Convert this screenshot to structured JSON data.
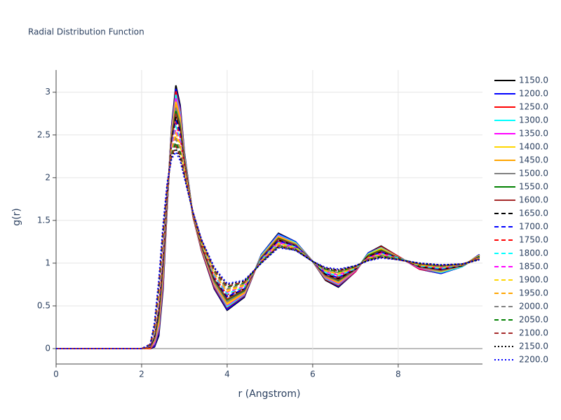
{
  "chart_data": {
    "type": "line",
    "title": "Radial Distribution Function",
    "x_label": "r (Angstrom)",
    "y_label": "g(r)",
    "x": [
      0,
      2.0,
      2.2,
      2.3,
      2.4,
      2.5,
      2.6,
      2.7,
      2.8,
      2.9,
      3.0,
      3.2,
      3.4,
      3.7,
      4.0,
      4.4,
      4.8,
      5.2,
      5.6,
      6.0,
      6.3,
      6.6,
      7.0,
      7.3,
      7.6,
      8.0,
      8.5,
      9.0,
      9.5,
      9.9
    ],
    "xlim": [
      0,
      9.97
    ],
    "ylim": [
      -0.18,
      3.26
    ],
    "xticks": [
      0,
      2,
      4,
      6,
      8
    ],
    "yticks": [
      0,
      0.5,
      1,
      1.5,
      2,
      2.5,
      3
    ],
    "grid": true,
    "legend": "right",
    "series": [
      {
        "name": "1150.0",
        "color": "#000000",
        "dash": "solid",
        "values": [
          0,
          0,
          0,
          0.02,
          0.15,
          0.7,
          1.7,
          2.6,
          3.08,
          2.85,
          2.3,
          1.55,
          1.15,
          0.7,
          0.45,
          0.6,
          1.1,
          1.35,
          1.25,
          1.02,
          0.8,
          0.72,
          0.9,
          1.12,
          1.2,
          1.08,
          0.93,
          0.88,
          0.96,
          1.1
        ]
      },
      {
        "name": "1200.0",
        "color": "#0000ff",
        "dash": "solid",
        "values": [
          0,
          0,
          0,
          0.03,
          0.18,
          0.74,
          1.71,
          2.58,
          3.04,
          2.82,
          2.29,
          1.55,
          1.16,
          0.71,
          0.46,
          0.61,
          1.1,
          1.34,
          1.25,
          1.02,
          0.81,
          0.73,
          0.9,
          1.12,
          1.19,
          1.08,
          0.93,
          0.88,
          0.96,
          1.1
        ]
      },
      {
        "name": "1250.0",
        "color": "#ff0000",
        "dash": "solid",
        "values": [
          0,
          0,
          0,
          0.05,
          0.21,
          0.77,
          1.72,
          2.56,
          3.01,
          2.79,
          2.27,
          1.55,
          1.16,
          0.72,
          0.48,
          0.62,
          1.09,
          1.33,
          1.24,
          1.02,
          0.81,
          0.74,
          0.9,
          1.11,
          1.19,
          1.08,
          0.93,
          0.89,
          0.96,
          1.09
        ]
      },
      {
        "name": "1300.0",
        "color": "#00ffff",
        "dash": "solid",
        "values": [
          0,
          0,
          0.01,
          0.06,
          0.24,
          0.81,
          1.74,
          2.55,
          2.97,
          2.76,
          2.26,
          1.56,
          1.17,
          0.74,
          0.49,
          0.63,
          1.09,
          1.33,
          1.24,
          1.02,
          0.82,
          0.75,
          0.91,
          1.11,
          1.18,
          1.07,
          0.94,
          0.89,
          0.96,
          1.09
        ]
      },
      {
        "name": "1350.0",
        "color": "#ff00ff",
        "dash": "solid",
        "values": [
          0,
          0,
          0.01,
          0.07,
          0.27,
          0.84,
          1.75,
          2.53,
          2.93,
          2.73,
          2.24,
          1.56,
          1.17,
          0.75,
          0.51,
          0.64,
          1.08,
          1.32,
          1.23,
          1.02,
          0.83,
          0.76,
          0.91,
          1.1,
          1.17,
          1.07,
          0.94,
          0.9,
          0.97,
          1.09
        ]
      },
      {
        "name": "1400.0",
        "color": "#ffd700",
        "dash": "solid",
        "values": [
          0,
          0,
          0.01,
          0.09,
          0.3,
          0.88,
          1.76,
          2.51,
          2.89,
          2.7,
          2.23,
          1.56,
          1.18,
          0.76,
          0.52,
          0.65,
          1.08,
          1.31,
          1.23,
          1.02,
          0.84,
          0.77,
          0.92,
          1.1,
          1.17,
          1.07,
          0.95,
          0.9,
          0.97,
          1.09
        ]
      },
      {
        "name": "1450.0",
        "color": "#ffa500",
        "dash": "solid",
        "values": [
          0,
          0,
          0.01,
          0.1,
          0.34,
          0.91,
          1.77,
          2.49,
          2.86,
          2.66,
          2.21,
          1.56,
          1.19,
          0.77,
          0.54,
          0.66,
          1.07,
          1.3,
          1.22,
          1.02,
          0.84,
          0.78,
          0.92,
          1.09,
          1.16,
          1.07,
          0.95,
          0.91,
          0.97,
          1.08
        ]
      },
      {
        "name": "1500.0",
        "color": "#808080",
        "dash": "solid",
        "values": [
          0,
          0,
          0.02,
          0.11,
          0.37,
          0.95,
          1.78,
          2.47,
          2.82,
          2.63,
          2.2,
          1.57,
          1.19,
          0.78,
          0.55,
          0.67,
          1.07,
          1.29,
          1.22,
          1.02,
          0.85,
          0.79,
          0.92,
          1.09,
          1.15,
          1.07,
          0.95,
          0.91,
          0.97,
          1.08
        ]
      },
      {
        "name": "1550.0",
        "color": "#008000",
        "dash": "solid",
        "values": [
          0,
          0,
          0.02,
          0.13,
          0.4,
          0.99,
          1.8,
          2.46,
          2.78,
          2.6,
          2.19,
          1.57,
          1.2,
          0.8,
          0.57,
          0.68,
          1.06,
          1.29,
          1.21,
          1.02,
          0.86,
          0.8,
          0.93,
          1.09,
          1.15,
          1.06,
          0.96,
          0.92,
          0.97,
          1.08
        ]
      },
      {
        "name": "1600.0",
        "color": "#a52a2a",
        "dash": "solid",
        "values": [
          0,
          0,
          0.02,
          0.14,
          0.43,
          1.02,
          1.81,
          2.44,
          2.75,
          2.57,
          2.17,
          1.57,
          1.21,
          0.81,
          0.58,
          0.69,
          1.06,
          1.28,
          1.21,
          1.02,
          0.86,
          0.81,
          0.93,
          1.08,
          1.14,
          1.06,
          0.96,
          0.92,
          0.97,
          1.07
        ]
      },
      {
        "name": "1650.0",
        "color": "#000000",
        "dash": "dash",
        "values": [
          0,
          0,
          0.02,
          0.15,
          0.46,
          1.06,
          1.82,
          2.42,
          2.71,
          2.54,
          2.16,
          1.57,
          1.21,
          0.82,
          0.6,
          0.7,
          1.05,
          1.27,
          1.2,
          1.02,
          0.87,
          0.82,
          0.93,
          1.08,
          1.13,
          1.06,
          0.96,
          0.93,
          0.97,
          1.07
        ]
      },
      {
        "name": "1700.0",
        "color": "#0000ff",
        "dash": "dash",
        "values": [
          0,
          0,
          0.03,
          0.17,
          0.49,
          1.09,
          1.83,
          2.4,
          2.67,
          2.51,
          2.14,
          1.58,
          1.22,
          0.83,
          0.61,
          0.7,
          1.05,
          1.26,
          1.2,
          1.02,
          0.88,
          0.83,
          0.94,
          1.07,
          1.13,
          1.06,
          0.97,
          0.93,
          0.98,
          1.07
        ]
      },
      {
        "name": "1750.0",
        "color": "#ff0000",
        "dash": "dash",
        "values": [
          0,
          0,
          0.03,
          0.18,
          0.52,
          1.13,
          1.84,
          2.38,
          2.63,
          2.48,
          2.13,
          1.58,
          1.22,
          0.84,
          0.63,
          0.71,
          1.04,
          1.25,
          1.19,
          1.02,
          0.89,
          0.84,
          0.94,
          1.07,
          1.12,
          1.06,
          0.97,
          0.94,
          0.98,
          1.07
        ]
      },
      {
        "name": "1800.0",
        "color": "#00ffff",
        "dash": "dash",
        "values": [
          0,
          0,
          0.03,
          0.19,
          0.55,
          1.16,
          1.85,
          2.36,
          2.6,
          2.45,
          2.11,
          1.58,
          1.23,
          0.85,
          0.64,
          0.72,
          1.04,
          1.24,
          1.19,
          1.02,
          0.89,
          0.85,
          0.94,
          1.06,
          1.11,
          1.06,
          0.97,
          0.94,
          0.98,
          1.06
        ]
      },
      {
        "name": "1850.0",
        "color": "#ff00ff",
        "dash": "dash",
        "values": [
          0,
          0,
          0.03,
          0.21,
          0.58,
          1.2,
          1.87,
          2.35,
          2.56,
          2.42,
          2.1,
          1.58,
          1.24,
          0.87,
          0.66,
          0.73,
          1.03,
          1.24,
          1.18,
          1.02,
          0.9,
          0.86,
          0.95,
          1.06,
          1.11,
          1.05,
          0.98,
          0.95,
          0.98,
          1.06
        ]
      },
      {
        "name": "1900.0",
        "color": "#ffd700",
        "dash": "dash",
        "values": [
          0,
          0,
          0.04,
          0.22,
          0.61,
          1.24,
          1.88,
          2.33,
          2.52,
          2.39,
          2.09,
          1.59,
          1.24,
          0.88,
          0.67,
          0.74,
          1.03,
          1.23,
          1.18,
          1.02,
          0.91,
          0.87,
          0.95,
          1.06,
          1.1,
          1.05,
          0.98,
          0.95,
          0.98,
          1.06
        ]
      },
      {
        "name": "1950.0",
        "color": "#ffa500",
        "dash": "dash",
        "values": [
          0,
          0,
          0.04,
          0.23,
          0.65,
          1.27,
          1.89,
          2.31,
          2.49,
          2.35,
          2.07,
          1.59,
          1.25,
          0.89,
          0.69,
          0.75,
          1.02,
          1.22,
          1.17,
          1.02,
          0.91,
          0.88,
          0.95,
          1.05,
          1.09,
          1.05,
          0.98,
          0.96,
          0.98,
          1.05
        ]
      },
      {
        "name": "2000.0",
        "color": "#808080",
        "dash": "dash",
        "values": [
          0,
          0,
          0.04,
          0.25,
          0.68,
          1.31,
          1.9,
          2.29,
          2.45,
          2.32,
          2.06,
          1.59,
          1.26,
          0.9,
          0.7,
          0.76,
          1.02,
          1.21,
          1.17,
          1.02,
          0.92,
          0.89,
          0.96,
          1.05,
          1.09,
          1.05,
          0.99,
          0.96,
          0.98,
          1.05
        ]
      },
      {
        "name": "2050.0",
        "color": "#008000",
        "dash": "dash",
        "values": [
          0,
          0,
          0.04,
          0.26,
          0.71,
          1.34,
          1.91,
          2.27,
          2.41,
          2.29,
          2.04,
          1.59,
          1.26,
          0.91,
          0.72,
          0.77,
          1.01,
          1.2,
          1.16,
          1.02,
          0.93,
          0.9,
          0.96,
          1.04,
          1.08,
          1.05,
          0.99,
          0.97,
          0.99,
          1.05
        ]
      },
      {
        "name": "2100.0",
        "color": "#a52a2a",
        "dash": "dash",
        "values": [
          0,
          0,
          0.05,
          0.27,
          0.74,
          1.38,
          1.92,
          2.26,
          2.37,
          2.26,
          2.03,
          1.6,
          1.27,
          0.92,
          0.73,
          0.78,
          1.01,
          1.2,
          1.16,
          1.02,
          0.94,
          0.91,
          0.96,
          1.04,
          1.07,
          1.04,
          0.99,
          0.97,
          0.99,
          1.05
        ]
      },
      {
        "name": "2150.0",
        "color": "#000000",
        "dash": "dot",
        "values": [
          0,
          0,
          0.05,
          0.29,
          0.77,
          1.41,
          1.94,
          2.24,
          2.34,
          2.23,
          2.01,
          1.6,
          1.27,
          0.94,
          0.75,
          0.79,
          1,
          1.19,
          1.15,
          1.02,
          0.94,
          0.92,
          0.97,
          1.03,
          1.07,
          1.04,
          1,
          0.98,
          0.99,
          1.04
        ]
      },
      {
        "name": "2200.0",
        "color": "#0000ff",
        "dash": "dot",
        "values": [
          0,
          0,
          0.05,
          0.3,
          0.8,
          1.45,
          1.95,
          2.22,
          2.3,
          2.2,
          2,
          1.6,
          1.28,
          0.95,
          0.76,
          0.8,
          1,
          1.18,
          1.15,
          1.02,
          0.95,
          0.93,
          0.97,
          1.03,
          1.06,
          1.04,
          1,
          0.98,
          0.99,
          1.04
        ]
      }
    ]
  }
}
